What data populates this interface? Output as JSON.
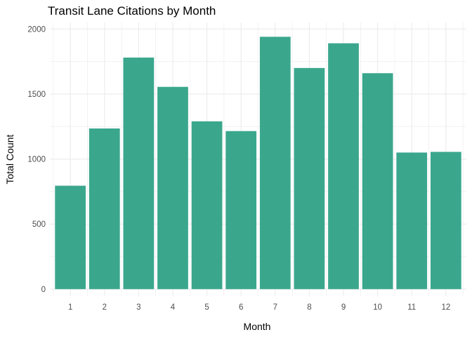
{
  "chart_data": {
    "type": "bar",
    "title": "Transit Lane Citations by Month",
    "xlabel": "Month",
    "ylabel": "Total Count",
    "categories": [
      "1",
      "2",
      "3",
      "4",
      "5",
      "6",
      "7",
      "8",
      "9",
      "10",
      "11",
      "12"
    ],
    "values": [
      795,
      1235,
      1780,
      1555,
      1290,
      1215,
      1940,
      1700,
      1890,
      1660,
      1050,
      1055
    ],
    "ylim": [
      -55,
      2050
    ],
    "yticks": [
      0,
      500,
      1000,
      1500,
      2000
    ],
    "grid": true,
    "bar_color": "#3aa78d",
    "grid_color": "#ebebeb",
    "legend": "none"
  }
}
